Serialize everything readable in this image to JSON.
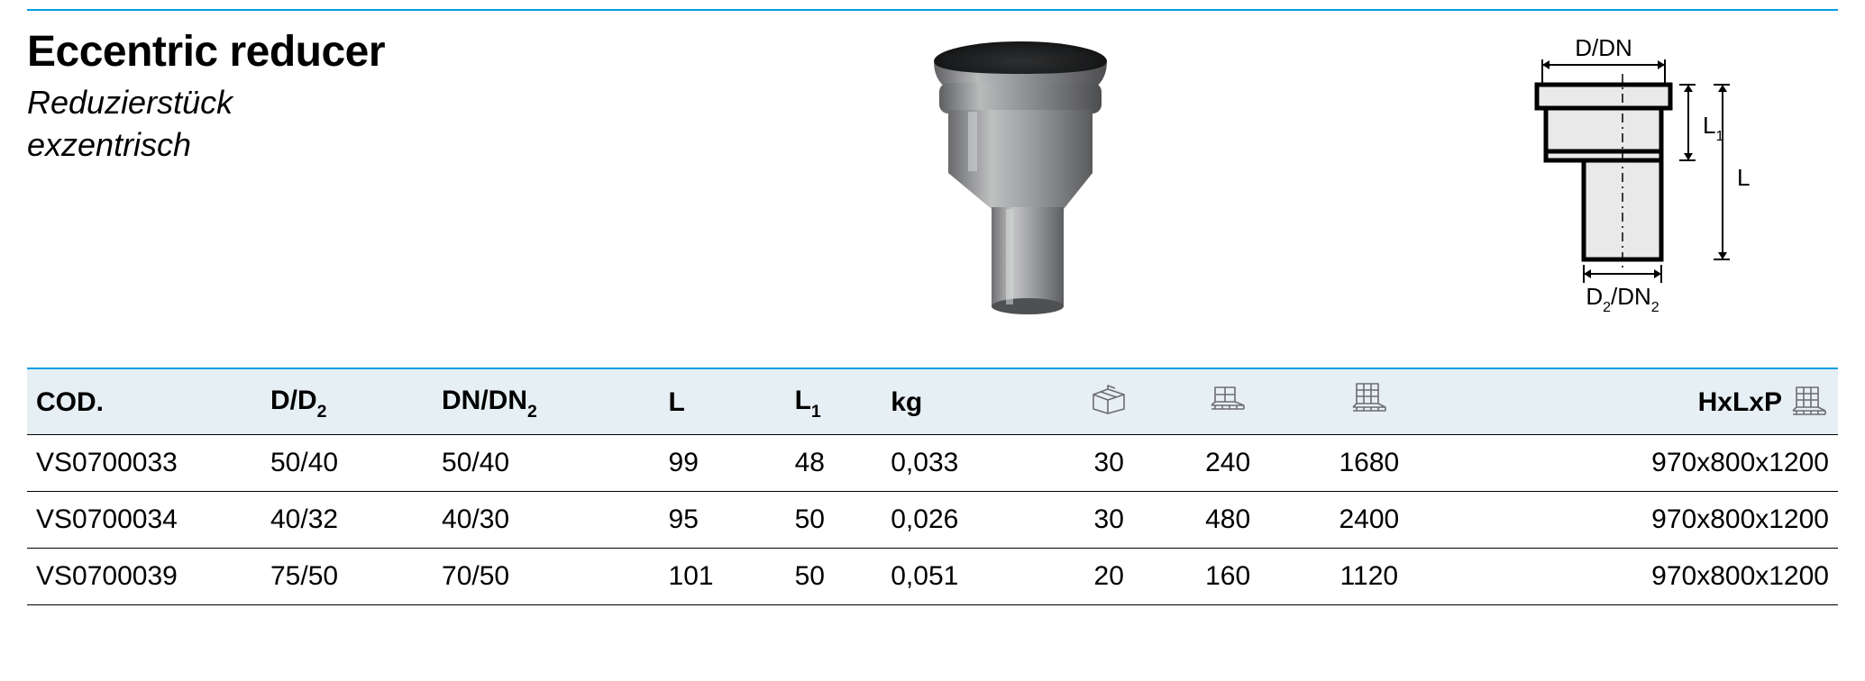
{
  "title": "Eccentric reducer",
  "subtitle_line1": "Reduzierstück",
  "subtitle_line2": "exzentrisch",
  "accent_color": "#009fe3",
  "header_bg": "#e6eff4",
  "diagram": {
    "label_top": "D/DN",
    "label_bottom_d2": "D",
    "label_bottom_dn2": "/DN",
    "label_L": "L",
    "label_L1": "L"
  },
  "columns": {
    "cod": "COD.",
    "d_d2_main": "D/D",
    "dn_dn2_main": "DN/DN",
    "l": "L",
    "l1_main": "L",
    "kg": "kg",
    "hxlxp": "HxLxP"
  },
  "rows": [
    {
      "cod": "VS0700033",
      "d": "50/40",
      "dn": "50/40",
      "l": "99",
      "l1": "48",
      "kg": "0,033",
      "box": "30",
      "pallet1": "240",
      "pallet2": "1680",
      "hxlxp": "970x800x1200"
    },
    {
      "cod": "VS0700034",
      "d": "40/32",
      "dn": "40/30",
      "l": "95",
      "l1": "50",
      "kg": "0,026",
      "box": "30",
      "pallet1": "480",
      "pallet2": "2400",
      "hxlxp": "970x800x1200"
    },
    {
      "cod": "VS0700039",
      "d": "75/50",
      "dn": "70/50",
      "l": "101",
      "l1": "50",
      "kg": "0,051",
      "box": "20",
      "pallet1": "160",
      "pallet2": "1120",
      "hxlxp": "970x800x1200"
    }
  ]
}
